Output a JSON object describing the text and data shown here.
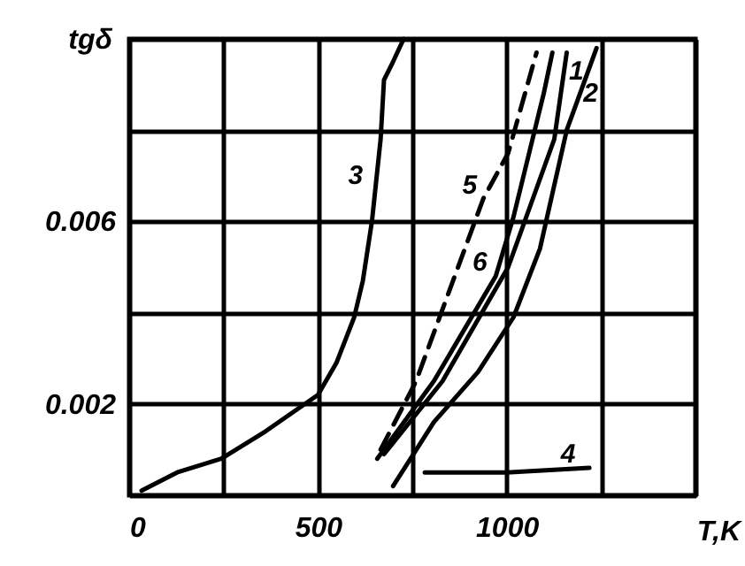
{
  "chart_data": {
    "type": "line",
    "xlabel": "T,K",
    "ylabel": "tgδ",
    "xlim": [
      0,
      1500
    ],
    "ylim": [
      0,
      0.01
    ],
    "xticks": [
      0,
      {
        "value": 250,
        "label": null
      },
      500,
      {
        "value": 750,
        "label": null
      },
      1000,
      {
        "value": 1250,
        "label": null
      },
      {
        "value": 1500,
        "label": null
      }
    ],
    "yticks": [
      {
        "value": 0,
        "label": null
      },
      {
        "value": 0.002,
        "label": "0.002"
      },
      {
        "value": 0.004,
        "label": null
      },
      {
        "value": 0.006,
        "label": "0.006"
      },
      {
        "value": 0.008,
        "label": null
      },
      {
        "value": 0.01,
        "label": null
      }
    ],
    "grid": true,
    "marker": "none",
    "series": [
      {
        "color": "#000000",
        "line_style": "solid",
        "x": [
          675,
          830,
          1004,
          1065,
          1126,
          1159
        ],
        "values": [
          0.0009,
          0.0025,
          0.005,
          0.0064,
          0.0078,
          0.0097
        ]
      },
      {
        "color": "#000000",
        "line_style": "solid",
        "x": [
          699,
          807,
          924,
          1018,
          1088,
          1159,
          1238
        ],
        "values": [
          0.0002,
          0.0016,
          0.0027,
          0.0039,
          0.0054,
          0.008,
          0.0098
        ]
      },
      {
        "color": "#000000",
        "line_style": "solid",
        "x": [
          33,
          127,
          244,
          361,
          500,
          549,
          596,
          619,
          643,
          666,
          675,
          699,
          727
        ],
        "values": [
          0.0001,
          0.0005,
          0.0008,
          0.0014,
          0.0022,
          0.0029,
          0.0039,
          0.0047,
          0.006,
          0.0078,
          0.0091,
          0.0095,
          0.01
        ]
      },
      {
        "color": "#000000",
        "line_style": "solid",
        "x": [
          783,
          1000,
          1219
        ],
        "values": [
          0.0005,
          0.0005,
          0.0006
        ]
      },
      {
        "color": "#000000",
        "line_style": "dashed",
        "x": [
          666,
          760,
          840,
          938,
          1004,
          1079
        ],
        "values": [
          0.001,
          0.0025,
          0.0043,
          0.0065,
          0.0075,
          0.0097
        ]
      },
      {
        "color": "#000000",
        "line_style": "solid",
        "x": [
          657,
          807,
          971,
          1018,
          1098,
          1121
        ],
        "values": [
          0.0008,
          0.0025,
          0.0048,
          0.0061,
          0.0088,
          0.0097
        ]
      }
    ],
    "annotations": [
      {
        "text": "1",
        "x": 1147,
        "y": 0.009
      },
      {
        "text": "2",
        "x": 1181,
        "y": 0.0085
      },
      {
        "text": "3",
        "x": 652,
        "y": 0.0067
      },
      {
        "text": "4",
        "x": 1219,
        "y": 0.0006
      },
      {
        "text": "5",
        "x": 938,
        "y": 0.0065
      },
      {
        "text": "6",
        "x": 971,
        "y": 0.0048
      }
    ]
  }
}
